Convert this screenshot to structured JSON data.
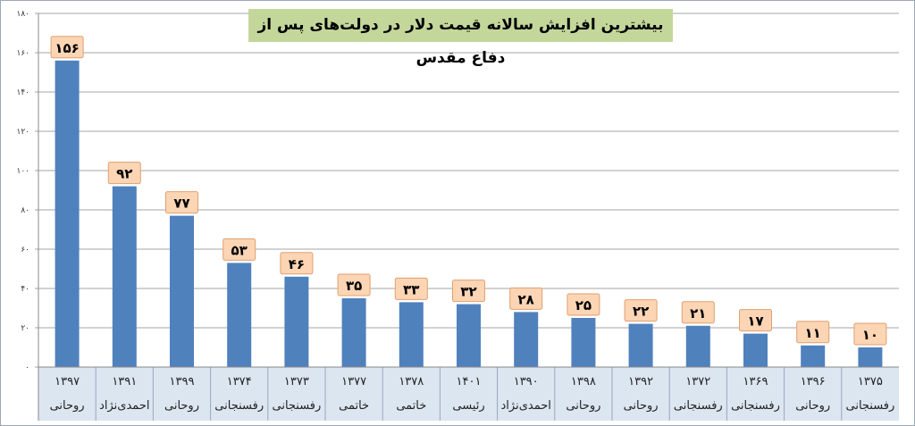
{
  "chart_data": {
    "type": "bar",
    "title": "بیشترین افزایش سالانه قیمت دلار در دولت‌های پس از دفاع مقدس",
    "categories": [
      {
        "year": "۱۳۹۷",
        "president": "روحانی"
      },
      {
        "year": "۱۳۹۱",
        "president": "احمدی‌نژاد"
      },
      {
        "year": "۱۳۹۹",
        "president": "روحانی"
      },
      {
        "year": "۱۳۷۴",
        "president": "رفسنجانی"
      },
      {
        "year": "۱۳۷۳",
        "president": "رفسنجانی"
      },
      {
        "year": "۱۳۷۷",
        "president": "خاتمی"
      },
      {
        "year": "۱۳۷۸",
        "president": "خاتمی"
      },
      {
        "year": "۱۴۰۱",
        "president": "رئیسی"
      },
      {
        "year": "۱۳۹۰",
        "president": "احمدی‌نژاد"
      },
      {
        "year": "۱۳۹۸",
        "president": "روحانی"
      },
      {
        "year": "۱۳۹۲",
        "president": "روحانی"
      },
      {
        "year": "۱۳۷۲",
        "president": "رفسنجانی"
      },
      {
        "year": "۱۳۶۹",
        "president": "رفسنجانی"
      },
      {
        "year": "۱۳۹۶",
        "president": "روحانی"
      },
      {
        "year": "۱۳۷۵",
        "president": "رفسنجانی"
      }
    ],
    "values": [
      156,
      92,
      77,
      53,
      46,
      35,
      33,
      32,
      28,
      25,
      22,
      21,
      17,
      11,
      10
    ],
    "data_labels": [
      "۱۵۶",
      "۹۲",
      "۷۷",
      "۵۳",
      "۴۶",
      "۳۵",
      "۳۳",
      "۳۲",
      "۲۸",
      "۲۵",
      "۲۲",
      "۲۱",
      "۱۷",
      "۱۱",
      "۱۰"
    ],
    "ylim": [
      0,
      180
    ],
    "yticks": [
      0,
      20,
      40,
      60,
      80,
      100,
      120,
      140,
      160,
      180
    ],
    "ytick_labels": [
      "۰",
      "۲۰",
      "۴۰",
      "۶۰",
      "۸۰",
      "۱۰۰",
      "۱۲۰",
      "۱۴۰",
      "۱۶۰",
      "۱۸۰"
    ],
    "grid": true,
    "colors": {
      "bar": "#4f81bd",
      "label_bg": "#fcd5b4",
      "title_bg": "#c4d79b",
      "axis_bg": "#dce6f1",
      "grid": "#a6a6a6"
    }
  }
}
